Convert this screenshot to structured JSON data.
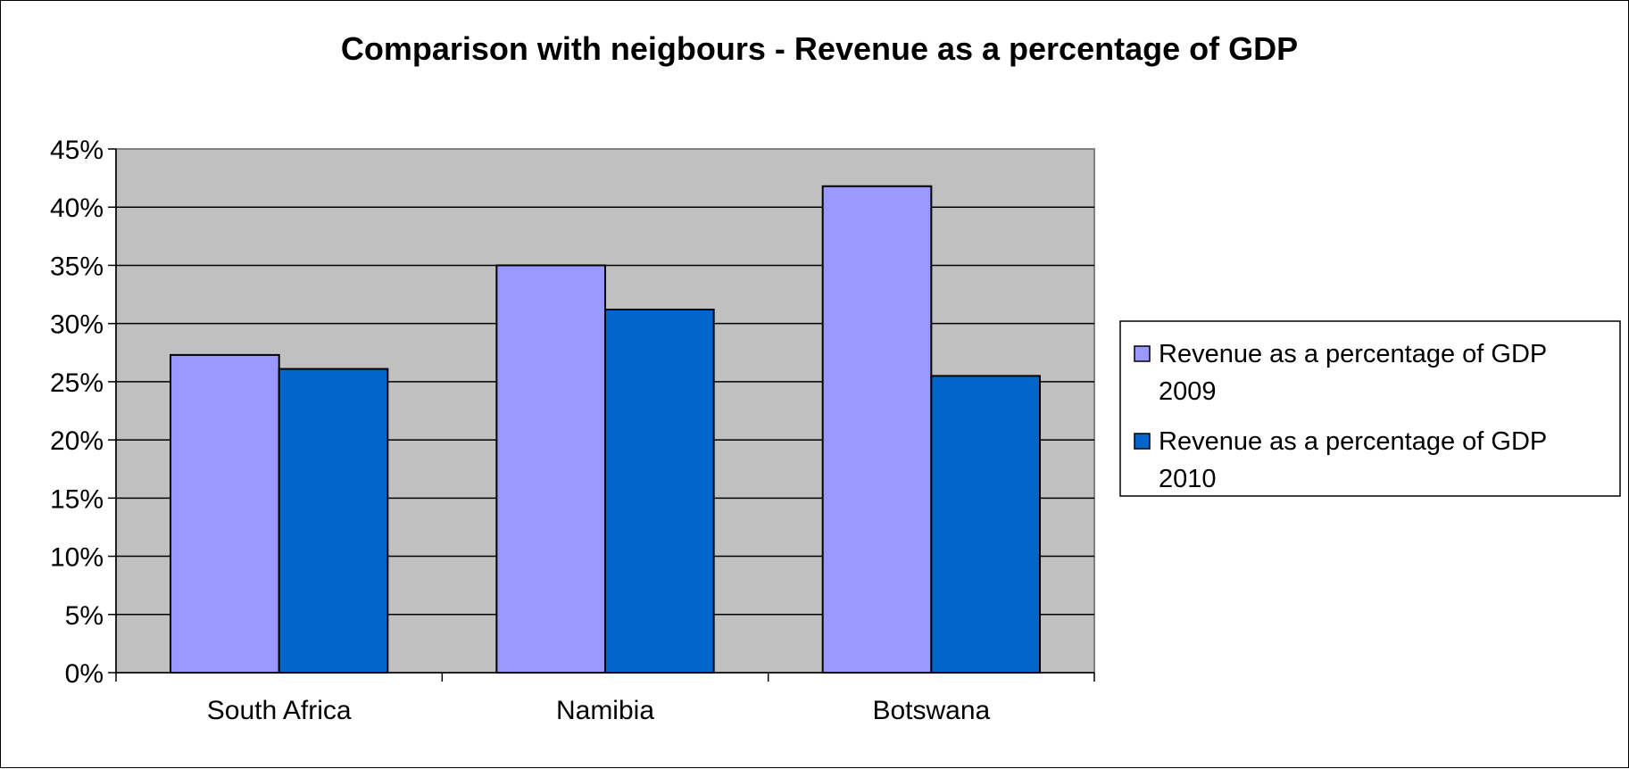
{
  "chart_data": {
    "type": "bar",
    "title": "Comparison with neigbours - Revenue as a percentage of GDP",
    "xlabel": "",
    "ylabel": "",
    "categories": [
      "South Africa",
      "Namibia",
      "Botswana"
    ],
    "series": [
      {
        "name": "Revenue as a percentage of GDP 2009",
        "legend_lines": [
          "Revenue as a percentage of GDP",
          "2009"
        ],
        "color": "#9999FF",
        "values": [
          27.3,
          35.0,
          41.8
        ]
      },
      {
        "name": "Revenue as a percentage of GDP 2010",
        "legend_lines": [
          "Revenue as a percentage of GDP",
          "2010"
        ],
        "color": "#0066CC",
        "values": [
          26.1,
          31.2,
          25.5
        ]
      }
    ],
    "ylim": [
      0,
      45
    ],
    "ytick_step": 5,
    "ytick_labels": [
      "0%",
      "5%",
      "10%",
      "15%",
      "20%",
      "25%",
      "30%",
      "35%",
      "40%",
      "45%"
    ],
    "grid": true,
    "plot_background": "#C0C0C0",
    "legend_position": "right"
  }
}
